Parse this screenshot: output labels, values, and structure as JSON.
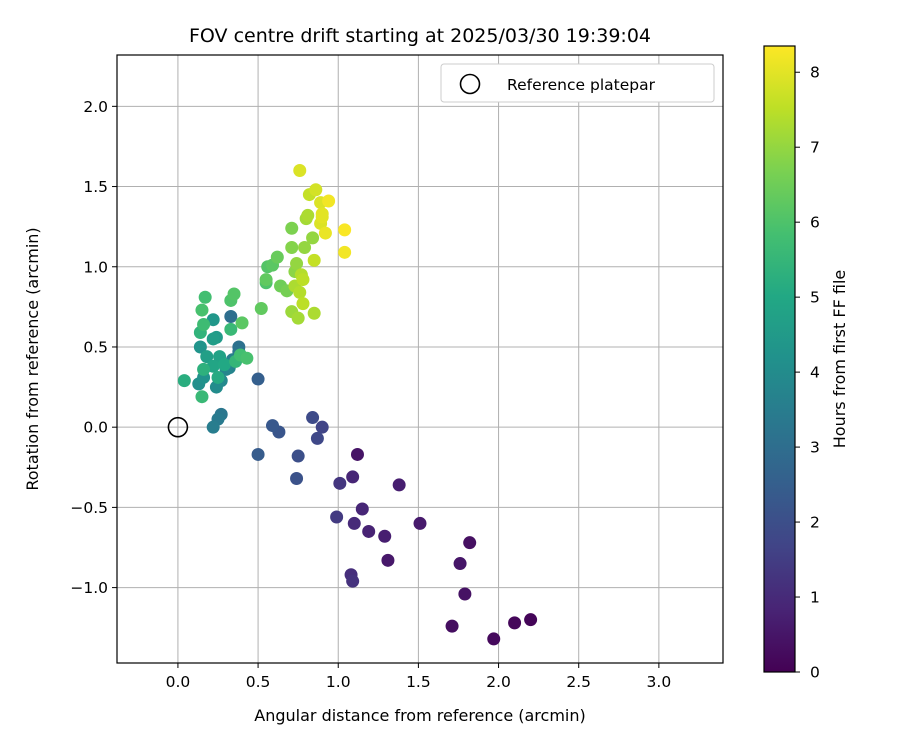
{
  "chart_data": {
    "type": "scatter",
    "title": "FOV centre drift starting at 2025/03/30 19:39:04",
    "xlabel": "Angular distance from reference (arcmin)",
    "ylabel": "Rotation from reference (arcmin)",
    "xlim": [
      -0.38,
      3.4
    ],
    "ylim": [
      -1.47,
      2.32
    ],
    "xticks": [
      0.0,
      0.5,
      1.0,
      1.5,
      2.0,
      2.5,
      3.0
    ],
    "yticks": [
      -1.0,
      -0.5,
      0.0,
      0.5,
      1.0,
      1.5,
      2.0
    ],
    "xtick_labels": [
      "0.0",
      "0.5",
      "1.0",
      "1.5",
      "2.0",
      "2.5",
      "3.0"
    ],
    "ytick_labels": [
      "−1.0",
      "−0.5",
      "0.0",
      "0.5",
      "1.0",
      "1.5",
      "2.0"
    ],
    "grid": true,
    "legend": {
      "position": "top-right",
      "entries": [
        "Reference platepar"
      ]
    },
    "reference_point": {
      "name": "Reference platepar",
      "x": 0.0,
      "y": 0.0
    },
    "colorbar": {
      "label": "Hours from first FF file",
      "min": 0,
      "max": 8.35,
      "ticks": [
        0,
        1,
        2,
        3,
        4,
        5,
        6,
        7,
        8
      ],
      "tick_labels": [
        "0",
        "1",
        "2",
        "3",
        "4",
        "5",
        "6",
        "7",
        "8"
      ],
      "colormap": "viridis"
    },
    "points": [
      {
        "x": 2.2,
        "y": -1.2,
        "t": 0.1
      },
      {
        "x": 2.1,
        "y": -1.22,
        "t": 0.15
      },
      {
        "x": 1.97,
        "y": -1.32,
        "t": 0.2
      },
      {
        "x": 1.71,
        "y": -1.24,
        "t": 0.3
      },
      {
        "x": 1.79,
        "y": -1.04,
        "t": 0.4
      },
      {
        "x": 1.82,
        "y": -0.72,
        "t": 0.35
      },
      {
        "x": 1.76,
        "y": -0.85,
        "t": 0.5
      },
      {
        "x": 1.51,
        "y": -0.6,
        "t": 0.6
      },
      {
        "x": 1.38,
        "y": -0.36,
        "t": 0.7
      },
      {
        "x": 1.31,
        "y": -0.83,
        "t": 0.55
      },
      {
        "x": 1.29,
        "y": -0.68,
        "t": 0.7
      },
      {
        "x": 1.19,
        "y": -0.65,
        "t": 0.8
      },
      {
        "x": 1.15,
        "y": -0.51,
        "t": 0.9
      },
      {
        "x": 1.1,
        "y": -0.6,
        "t": 1.0
      },
      {
        "x": 1.12,
        "y": -0.17,
        "t": 0.45
      },
      {
        "x": 1.09,
        "y": -0.31,
        "t": 0.9
      },
      {
        "x": 1.08,
        "y": -0.92,
        "t": 1.1
      },
      {
        "x": 1.09,
        "y": -0.96,
        "t": 1.2
      },
      {
        "x": 1.01,
        "y": -0.35,
        "t": 1.3
      },
      {
        "x": 0.99,
        "y": -0.56,
        "t": 1.4
      },
      {
        "x": 0.9,
        "y": 0.0,
        "t": 1.7
      },
      {
        "x": 0.87,
        "y": -0.07,
        "t": 1.8
      },
      {
        "x": 0.84,
        "y": 0.06,
        "t": 1.9
      },
      {
        "x": 0.75,
        "y": -0.18,
        "t": 2.0
      },
      {
        "x": 0.74,
        "y": -0.32,
        "t": 2.1
      },
      {
        "x": 0.63,
        "y": -0.03,
        "t": 2.2
      },
      {
        "x": 0.59,
        "y": 0.01,
        "t": 2.3
      },
      {
        "x": 0.5,
        "y": -0.17,
        "t": 2.4
      },
      {
        "x": 0.5,
        "y": 0.3,
        "t": 2.5
      },
      {
        "x": 0.27,
        "y": 0.08,
        "t": 3.3
      },
      {
        "x": 0.25,
        "y": 0.05,
        "t": 3.4
      },
      {
        "x": 0.22,
        "y": 0.0,
        "t": 3.5
      },
      {
        "x": 0.33,
        "y": 0.69,
        "t": 3.0
      },
      {
        "x": 0.38,
        "y": 0.5,
        "t": 3.1
      },
      {
        "x": 0.38,
        "y": 0.47,
        "t": 3.2
      },
      {
        "x": 0.34,
        "y": 0.42,
        "t": 3.6
      },
      {
        "x": 0.32,
        "y": 0.37,
        "t": 3.7
      },
      {
        "x": 0.3,
        "y": 0.36,
        "t": 3.8
      },
      {
        "x": 0.27,
        "y": 0.29,
        "t": 3.9
      },
      {
        "x": 0.24,
        "y": 0.25,
        "t": 4.0
      },
      {
        "x": 0.13,
        "y": 0.27,
        "t": 4.1
      },
      {
        "x": 0.16,
        "y": 0.31,
        "t": 4.2
      },
      {
        "x": 0.14,
        "y": 0.5,
        "t": 4.3
      },
      {
        "x": 0.22,
        "y": 0.67,
        "t": 4.4
      },
      {
        "x": 0.24,
        "y": 0.56,
        "t": 4.5
      },
      {
        "x": 0.22,
        "y": 0.55,
        "t": 4.6
      },
      {
        "x": 0.18,
        "y": 0.44,
        "t": 4.7
      },
      {
        "x": 0.26,
        "y": 0.44,
        "t": 4.8
      },
      {
        "x": 0.22,
        "y": 0.38,
        "t": 4.9
      },
      {
        "x": 0.29,
        "y": 0.39,
        "t": 5.0
      },
      {
        "x": 0.25,
        "y": 0.31,
        "t": 5.1
      },
      {
        "x": 0.04,
        "y": 0.29,
        "t": 5.2
      },
      {
        "x": 0.16,
        "y": 0.36,
        "t": 5.3
      },
      {
        "x": 0.14,
        "y": 0.59,
        "t": 5.4
      },
      {
        "x": 0.36,
        "y": 0.41,
        "t": 5.5
      },
      {
        "x": 0.15,
        "y": 0.19,
        "t": 5.6
      },
      {
        "x": 0.16,
        "y": 0.64,
        "t": 5.7
      },
      {
        "x": 0.33,
        "y": 0.61,
        "t": 5.6
      },
      {
        "x": 0.39,
        "y": 0.45,
        "t": 5.8
      },
      {
        "x": 0.43,
        "y": 0.43,
        "t": 5.9
      },
      {
        "x": 0.15,
        "y": 0.73,
        "t": 5.9
      },
      {
        "x": 0.17,
        "y": 0.81,
        "t": 5.8
      },
      {
        "x": 0.33,
        "y": 0.79,
        "t": 6.0
      },
      {
        "x": 0.35,
        "y": 0.83,
        "t": 6.1
      },
      {
        "x": 0.4,
        "y": 0.65,
        "t": 6.2
      },
      {
        "x": 0.52,
        "y": 0.74,
        "t": 6.3
      },
      {
        "x": 0.55,
        "y": 0.9,
        "t": 6.0
      },
      {
        "x": 0.56,
        "y": 1.0,
        "t": 6.1
      },
      {
        "x": 0.59,
        "y": 1.01,
        "t": 6.2
      },
      {
        "x": 0.55,
        "y": 0.92,
        "t": 6.3
      },
      {
        "x": 0.62,
        "y": 1.06,
        "t": 6.4
      },
      {
        "x": 0.64,
        "y": 0.88,
        "t": 6.5
      },
      {
        "x": 0.68,
        "y": 0.85,
        "t": 6.6
      },
      {
        "x": 0.71,
        "y": 1.24,
        "t": 6.7
      },
      {
        "x": 0.71,
        "y": 1.12,
        "t": 6.8
      },
      {
        "x": 0.73,
        "y": 0.97,
        "t": 6.9
      },
      {
        "x": 0.74,
        "y": 1.02,
        "t": 7.0
      },
      {
        "x": 0.71,
        "y": 0.72,
        "t": 7.1
      },
      {
        "x": 0.75,
        "y": 0.68,
        "t": 7.2
      },
      {
        "x": 0.73,
        "y": 0.88,
        "t": 7.3
      },
      {
        "x": 0.76,
        "y": 0.84,
        "t": 7.4
      },
      {
        "x": 0.78,
        "y": 0.77,
        "t": 7.5
      },
      {
        "x": 0.77,
        "y": 0.95,
        "t": 7.4
      },
      {
        "x": 0.78,
        "y": 0.92,
        "t": 7.5
      },
      {
        "x": 0.79,
        "y": 1.12,
        "t": 7.0
      },
      {
        "x": 0.8,
        "y": 1.3,
        "t": 7.2
      },
      {
        "x": 0.81,
        "y": 1.32,
        "t": 7.3
      },
      {
        "x": 0.82,
        "y": 1.45,
        "t": 7.6
      },
      {
        "x": 0.84,
        "y": 1.18,
        "t": 7.0
      },
      {
        "x": 0.85,
        "y": 1.04,
        "t": 7.6
      },
      {
        "x": 0.85,
        "y": 0.71,
        "t": 7.3
      },
      {
        "x": 0.86,
        "y": 1.48,
        "t": 7.8
      },
      {
        "x": 0.89,
        "y": 1.4,
        "t": 7.9
      },
      {
        "x": 0.89,
        "y": 1.27,
        "t": 7.9
      },
      {
        "x": 0.9,
        "y": 1.31,
        "t": 8.0
      },
      {
        "x": 0.9,
        "y": 1.33,
        "t": 8.0
      },
      {
        "x": 0.92,
        "y": 1.21,
        "t": 8.1
      },
      {
        "x": 0.94,
        "y": 1.41,
        "t": 8.2
      },
      {
        "x": 0.76,
        "y": 1.6,
        "t": 7.9
      },
      {
        "x": 1.04,
        "y": 1.23,
        "t": 8.3
      },
      {
        "x": 1.04,
        "y": 1.09,
        "t": 8.2
      }
    ]
  }
}
